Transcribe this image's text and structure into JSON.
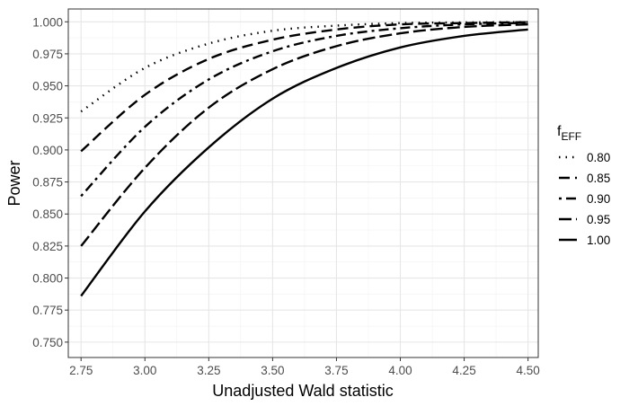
{
  "chart_data": {
    "type": "line",
    "title": "",
    "xlabel": "Unadjusted Wald statistic",
    "ylabel": "Power",
    "xlim": [
      2.7,
      4.54
    ],
    "ylim": [
      0.738,
      1.01
    ],
    "x_ticks": [
      "2.75",
      "3.00",
      "3.25",
      "3.50",
      "3.75",
      "4.00",
      "4.25",
      "4.50"
    ],
    "y_ticks": [
      "0.750",
      "0.775",
      "0.800",
      "0.825",
      "0.850",
      "0.875",
      "0.900",
      "0.925",
      "0.950",
      "0.975",
      "1.000"
    ],
    "grid": true,
    "legend": {
      "title_main": "f",
      "title_sub": "EFF",
      "position": "right"
    },
    "line_color": "#000000",
    "series": [
      {
        "name": "0.80",
        "dash": "dotted",
        "x": [
          2.75,
          3.0,
          3.25,
          3.5,
          3.75,
          4.0,
          4.25,
          4.5
        ],
        "y": [
          0.93,
          0.964,
          0.983,
          0.993,
          0.997,
          0.999,
          0.9995,
          0.9998
        ]
      },
      {
        "name": "0.85",
        "dash": "dashed",
        "x": [
          2.75,
          3.0,
          3.25,
          3.5,
          3.75,
          4.0,
          4.25,
          4.5
        ],
        "y": [
          0.899,
          0.943,
          0.971,
          0.986,
          0.994,
          0.998,
          0.999,
          0.9997
        ]
      },
      {
        "name": "0.90",
        "dash": "dotdash",
        "x": [
          2.75,
          3.0,
          3.25,
          3.5,
          3.75,
          4.0,
          4.25,
          4.5
        ],
        "y": [
          0.864,
          0.918,
          0.955,
          0.977,
          0.989,
          0.995,
          0.998,
          0.9992
        ]
      },
      {
        "name": "0.95",
        "dash": "longdash",
        "x": [
          2.75,
          3.0,
          3.25,
          3.5,
          3.75,
          4.0,
          4.25,
          4.5
        ],
        "y": [
          0.825,
          0.886,
          0.933,
          0.963,
          0.981,
          0.991,
          0.996,
          0.998
        ]
      },
      {
        "name": "1.00",
        "dash": "solid",
        "x": [
          2.75,
          3.0,
          3.25,
          3.5,
          3.75,
          4.0,
          4.25,
          4.5
        ],
        "y": [
          0.786,
          0.852,
          0.902,
          0.94,
          0.964,
          0.98,
          0.989,
          0.994
        ]
      }
    ]
  }
}
